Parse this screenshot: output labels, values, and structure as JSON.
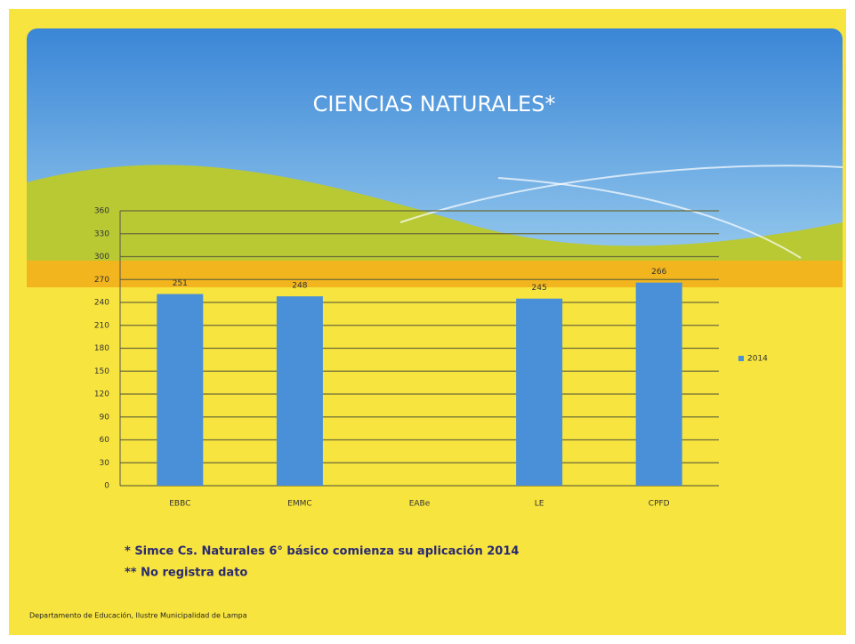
{
  "chart_data": {
    "type": "bar",
    "title": "CIENCIAS NATURALES*",
    "categories": [
      "EBBC",
      "EMMC",
      "EABe",
      "LE",
      "CPFD"
    ],
    "series": [
      {
        "name": "2014",
        "color": "#4a90d9",
        "values": [
          251,
          248,
          null,
          245,
          266
        ]
      }
    ],
    "ylim": [
      0,
      360
    ],
    "yticks": [
      0,
      30,
      60,
      90,
      120,
      150,
      180,
      210,
      240,
      270,
      300,
      330,
      360
    ],
    "grid": true,
    "legend": "right",
    "notes": [
      "* Simce Cs. Naturales 6° básico comienza su aplicación 2014",
      "** No registra dato"
    ],
    "footer": "Departamento de Educación, Ilustre Municipalidad de Lampa"
  }
}
